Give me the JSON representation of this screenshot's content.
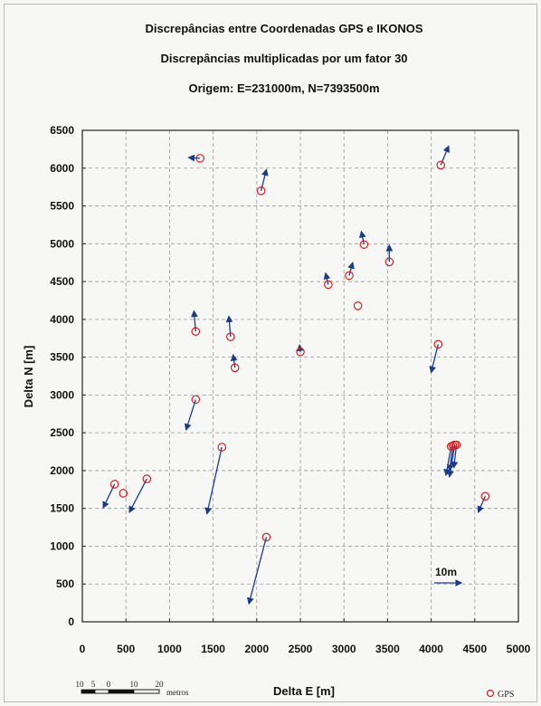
{
  "chart_data": {
    "type": "scatter",
    "title_lines": [
      "Discrepâncias entre Coordenadas GPS e IKONOS",
      "Discrepâncias multiplicadas por um fator 30",
      "Origem: E=231000m, N=7393500m"
    ],
    "xlabel": "Delta E [m]",
    "ylabel": "Delta N [m]",
    "xlim": [
      0,
      5000
    ],
    "ylim": [
      0,
      6500
    ],
    "xticks": [
      0,
      500,
      1000,
      1500,
      2000,
      2500,
      3000,
      3500,
      4000,
      4500,
      5000
    ],
    "yticks": [
      0,
      500,
      1000,
      1500,
      2000,
      2500,
      3000,
      3500,
      4000,
      4500,
      5000,
      5500,
      6000,
      6500
    ],
    "grid": true,
    "legend": {
      "position": "bottom-right",
      "label": "GPS"
    },
    "colors": {
      "point": "#cc2222",
      "vector": "#1a3a8a"
    },
    "scale_bar": {
      "labels": [
        "10",
        "5",
        "0",
        "10",
        "20"
      ],
      "unit": "metros"
    },
    "reference_vector": {
      "label": "10m"
    },
    "points": [
      {
        "e": 1350,
        "n": 6130,
        "de": -130,
        "dn": 10
      },
      {
        "e": 2050,
        "n": 5700,
        "de": 60,
        "dn": 280
      },
      {
        "e": 4110,
        "n": 6040,
        "de": 90,
        "dn": 250
      },
      {
        "e": 3230,
        "n": 4990,
        "de": -30,
        "dn": 170
      },
      {
        "e": 3520,
        "n": 4760,
        "de": 0,
        "dn": 220
      },
      {
        "e": 2820,
        "n": 4460,
        "de": -30,
        "dn": 150
      },
      {
        "e": 3060,
        "n": 4580,
        "de": 40,
        "dn": 170
      },
      {
        "e": 3160,
        "n": 4180,
        "de": 0,
        "dn": 0
      },
      {
        "e": 1300,
        "n": 3840,
        "de": -20,
        "dn": 270
      },
      {
        "e": 1700,
        "n": 3770,
        "de": -20,
        "dn": 270
      },
      {
        "e": 1750,
        "n": 3360,
        "de": -20,
        "dn": 170
      },
      {
        "e": 2500,
        "n": 3570,
        "de": -10,
        "dn": 90
      },
      {
        "e": 4080,
        "n": 3670,
        "de": -80,
        "dn": -370
      },
      {
        "e": 1300,
        "n": 2940,
        "de": -110,
        "dn": -400
      },
      {
        "e": 1600,
        "n": 2310,
        "de": -170,
        "dn": -880
      },
      {
        "e": 4230,
        "n": 2320,
        "de": -60,
        "dn": -380
      },
      {
        "e": 4250,
        "n": 2330,
        "de": -40,
        "dn": -330
      },
      {
        "e": 4270,
        "n": 2340,
        "de": -60,
        "dn": -420
      },
      {
        "e": 4290,
        "n": 2340,
        "de": -30,
        "dn": -300
      },
      {
        "e": 2110,
        "n": 1120,
        "de": -200,
        "dn": -880
      },
      {
        "e": 370,
        "n": 1820,
        "de": -130,
        "dn": -310
      },
      {
        "e": 470,
        "n": 1700,
        "de": 0,
        "dn": 0
      },
      {
        "e": 740,
        "n": 1890,
        "de": -200,
        "dn": -440
      },
      {
        "e": 4620,
        "n": 1660,
        "de": -80,
        "dn": -210
      }
    ]
  }
}
